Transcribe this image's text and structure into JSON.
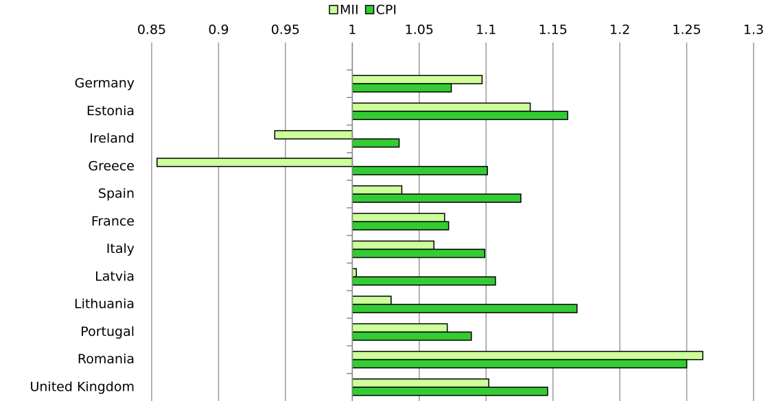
{
  "chart_data": {
    "type": "hbar",
    "categories": [
      "Germany",
      "Estonia",
      "Ireland",
      "Greece",
      "Spain",
      "France",
      "Italy",
      "Latvia",
      "Lithuania",
      "Portugal",
      "Romania",
      "United Kingdom"
    ],
    "series": [
      {
        "name": "MII",
        "color": "#ccff99",
        "values": [
          1.097,
          1.133,
          0.942,
          0.854,
          1.037,
          1.069,
          1.061,
          1.003,
          1.029,
          1.071,
          1.262,
          1.102
        ]
      },
      {
        "name": "CPI",
        "color": "#33cc33",
        "values": [
          1.074,
          1.161,
          1.035,
          1.101,
          1.126,
          1.072,
          1.099,
          1.107,
          1.168,
          1.089,
          1.25,
          1.146
        ]
      }
    ],
    "base": 1,
    "xlim": [
      0.85,
      1.3
    ],
    "xticks": [
      0.85,
      0.9,
      0.95,
      1,
      1.05,
      1.1,
      1.15,
      1.2,
      1.25,
      1.3
    ],
    "grid": true,
    "legend": "top"
  }
}
